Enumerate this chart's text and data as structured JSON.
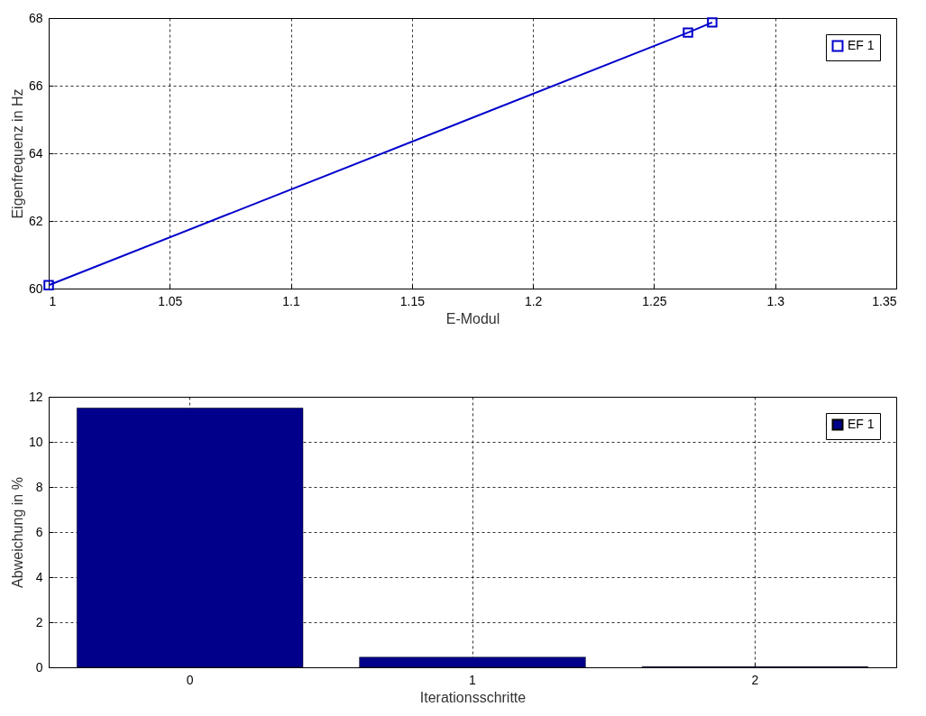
{
  "chart_data": [
    {
      "type": "line",
      "xlabel": "E-Modul",
      "ylabel": "Eigenfrequenz in Hz",
      "x": [
        1,
        1.264,
        1.274
      ],
      "series": [
        {
          "name": "EF 1",
          "color": "#0000cc",
          "values": [
            60.1,
            67.57,
            67.87
          ]
        }
      ],
      "xlim": [
        1,
        1.35
      ],
      "xticks": [
        1,
        1.05,
        1.1,
        1.15,
        1.2,
        1.25,
        1.3,
        1.35
      ],
      "ylim": [
        60,
        68
      ],
      "yticks": [
        60,
        62,
        64,
        66,
        68
      ],
      "grid": true,
      "legend": "top right",
      "marker": "square"
    },
    {
      "type": "bar",
      "xlabel": "Iterationsschritte",
      "ylabel": "Abweichung in %",
      "categories": [
        "0",
        "1",
        "2"
      ],
      "series": [
        {
          "name": "EF 1",
          "color": "#00008b",
          "values": [
            11.5,
            0.45,
            0.03
          ]
        }
      ],
      "ylim": [
        0,
        12
      ],
      "yticks": [
        0,
        2,
        4,
        6,
        8,
        10,
        12
      ],
      "grid": true,
      "legend": "top right"
    }
  ]
}
